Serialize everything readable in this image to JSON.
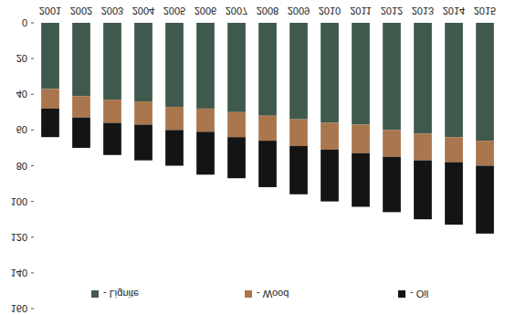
{
  "chart_data": {
    "type": "bar",
    "stacked": true,
    "categories": [
      "2001",
      "2002",
      "2003",
      "2004",
      "2005",
      "2006",
      "2007",
      "2008",
      "2009",
      "2010",
      "2011",
      "2012",
      "2013",
      "2014",
      "2015"
    ],
    "series": [
      {
        "name": "- Lignite",
        "color": "#3f5a4c",
        "values": [
          37,
          41,
          43,
          44,
          47,
          48,
          50,
          52,
          54,
          56,
          57,
          60,
          62,
          64,
          66
        ]
      },
      {
        "name": "- Wood",
        "color": "#a9764d",
        "values": [
          11,
          12,
          13,
          13,
          13,
          13,
          14,
          14,
          15,
          15,
          16,
          15,
          15,
          14,
          14
        ]
      },
      {
        "name": "- Oil",
        "color": "#141414",
        "values": [
          16,
          17,
          18,
          20,
          20,
          24,
          23,
          26,
          27,
          29,
          30,
          31,
          33,
          35,
          38
        ]
      }
    ],
    "ylim": [
      0,
      160
    ],
    "yticks": [
      0,
      20,
      40,
      60,
      80,
      100,
      120,
      140,
      160
    ],
    "grid": false,
    "legend": "bottom"
  }
}
